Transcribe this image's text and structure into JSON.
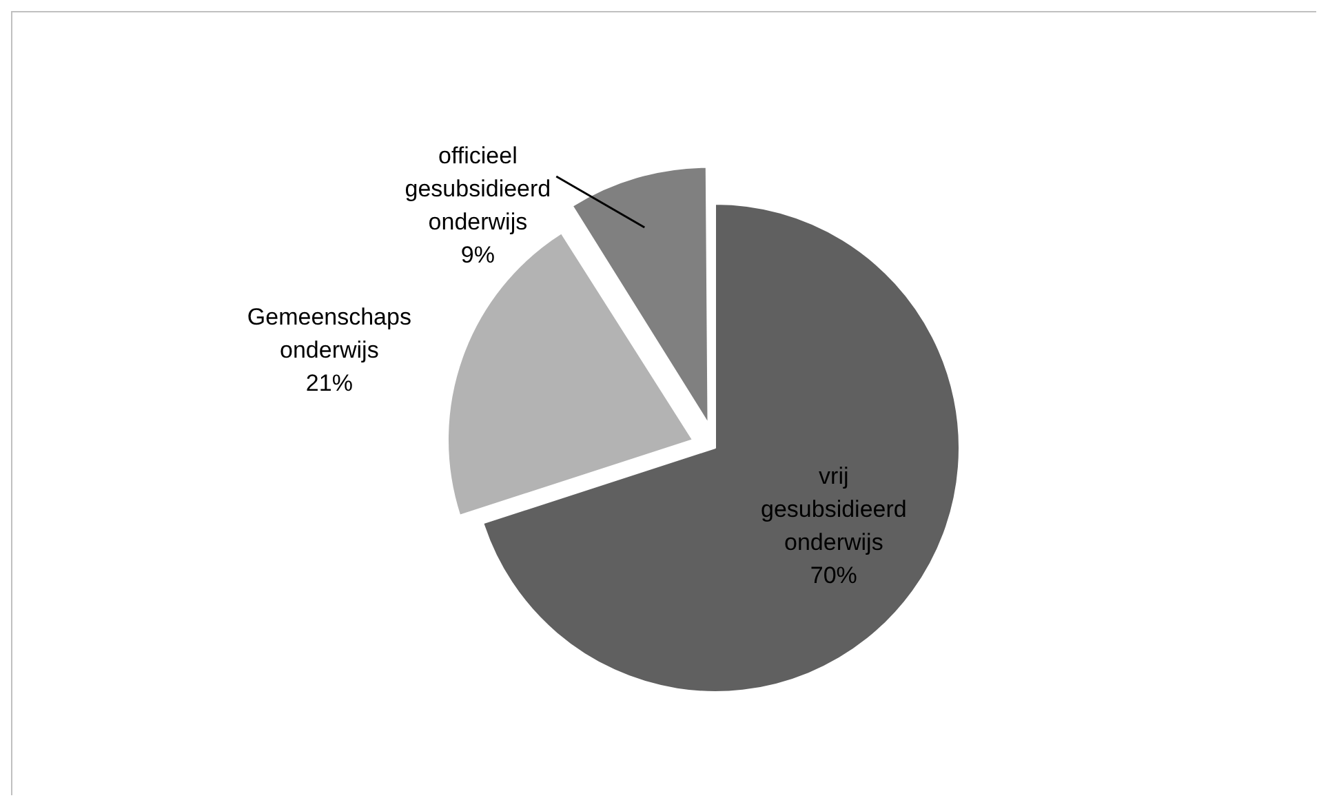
{
  "chart_data": {
    "type": "pie",
    "categories": [
      "vrij gesubsidieerd onderwijs",
      "Gemeenschaps onderwijs",
      "officieel gesubsidieerd onderwijs"
    ],
    "values": [
      70,
      21,
      9
    ],
    "value_labels": [
      "70%",
      "21%",
      "9%"
    ],
    "colors": [
      "#606060",
      "#b3b3b3",
      "#808080"
    ],
    "legend": false
  }
}
